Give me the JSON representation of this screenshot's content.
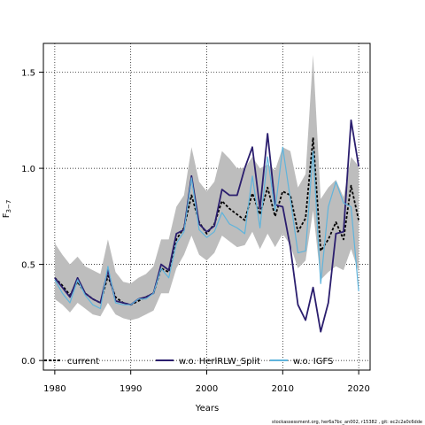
{
  "chart_data": {
    "type": "line",
    "xlabel": "Years",
    "ylabel": "F",
    "ylabel_subscript": "3−7",
    "xlim": [
      1978.5,
      2021.5
    ],
    "ylim": [
      -0.05,
      1.65
    ],
    "x_ticks": [
      1980,
      1990,
      2000,
      2010,
      2020
    ],
    "y_ticks": [
      0.0,
      0.5,
      1.0,
      1.5
    ],
    "x_tick_labels": [
      "1980",
      "1990",
      "2000",
      "2010",
      "2020"
    ],
    "y_tick_labels": [
      "0.0",
      "0.5",
      "1.0",
      "1.5"
    ],
    "grid": true,
    "legend_position": "bottom",
    "x": [
      1980,
      1981,
      1982,
      1983,
      1984,
      1985,
      1986,
      1987,
      1988,
      1989,
      1990,
      1991,
      1992,
      1993,
      1994,
      1995,
      1996,
      1997,
      1998,
      1999,
      2000,
      2001,
      2002,
      2003,
      2004,
      2005,
      2006,
      2007,
      2008,
      2009,
      2010,
      2011,
      2012,
      2013,
      2014,
      2015,
      2016,
      2017,
      2018,
      2019,
      2020
    ],
    "confidence_band": {
      "upper": [
        0.61,
        0.55,
        0.5,
        0.54,
        0.49,
        0.47,
        0.45,
        0.63,
        0.46,
        0.41,
        0.4,
        0.43,
        0.45,
        0.49,
        0.63,
        0.63,
        0.8,
        0.86,
        1.11,
        0.93,
        0.88,
        0.93,
        1.09,
        1.05,
        1.0,
        1.0,
        1.06,
        1.0,
        1.02,
        0.99,
        1.11,
        1.09,
        0.9,
        0.97,
        1.59,
        0.84,
        0.9,
        0.94,
        0.85,
        1.06,
        1.01
      ],
      "lower": [
        0.32,
        0.29,
        0.25,
        0.3,
        0.27,
        0.24,
        0.23,
        0.3,
        0.24,
        0.22,
        0.21,
        0.22,
        0.24,
        0.26,
        0.35,
        0.35,
        0.48,
        0.55,
        0.65,
        0.55,
        0.52,
        0.56,
        0.65,
        0.62,
        0.59,
        0.6,
        0.67,
        0.58,
        0.66,
        0.59,
        0.66,
        0.6,
        0.48,
        0.52,
        0.78,
        0.42,
        0.46,
        0.49,
        0.47,
        0.58,
        0.46
      ]
    },
    "series": [
      {
        "name": "current",
        "color": "#000000",
        "dashed": true,
        "values": [
          0.43,
          0.39,
          0.34,
          0.41,
          0.35,
          0.32,
          0.3,
          0.44,
          0.33,
          0.3,
          0.29,
          0.31,
          0.33,
          0.35,
          0.48,
          0.46,
          0.63,
          0.69,
          0.86,
          0.72,
          0.66,
          0.71,
          0.83,
          0.79,
          0.76,
          0.73,
          0.87,
          0.76,
          0.9,
          0.75,
          0.88,
          0.86,
          0.67,
          0.74,
          1.16,
          0.57,
          0.63,
          0.72,
          0.63,
          0.91,
          0.73
        ]
      },
      {
        "name": "w.o. HerlRLW_Split",
        "color": "#2b1e6e",
        "dashed": false,
        "values": [
          0.43,
          0.38,
          0.33,
          0.43,
          0.35,
          0.32,
          0.3,
          0.47,
          0.31,
          0.3,
          0.29,
          0.32,
          0.33,
          0.35,
          0.5,
          0.47,
          0.66,
          0.68,
          0.96,
          0.71,
          0.67,
          0.7,
          0.89,
          0.86,
          0.86,
          1.0,
          1.11,
          0.79,
          1.18,
          0.81,
          0.8,
          0.59,
          0.29,
          0.21,
          0.38,
          0.15,
          0.3,
          0.66,
          0.67,
          1.25,
          1.01
        ]
      },
      {
        "name": "w.o. IGFS",
        "color": "#5fb4dc",
        "dashed": false,
        "values": [
          0.42,
          0.35,
          0.3,
          0.42,
          0.34,
          0.29,
          0.27,
          0.49,
          0.3,
          0.29,
          0.29,
          0.32,
          0.32,
          0.35,
          0.48,
          0.43,
          0.61,
          0.67,
          0.95,
          0.68,
          0.64,
          0.67,
          0.77,
          0.71,
          0.69,
          0.66,
          0.96,
          0.69,
          1.06,
          0.78,
          1.11,
          0.84,
          0.56,
          0.57,
          1.09,
          0.4,
          0.8,
          0.93,
          0.82,
          0.8,
          0.36
        ]
      }
    ]
  },
  "footer_text": "stockassessment.org, her6a7bc_an002, r15382 , git: ec2c2a0c6dde"
}
